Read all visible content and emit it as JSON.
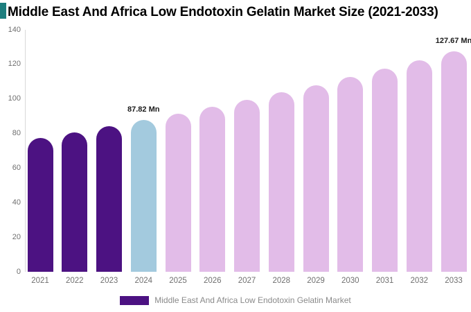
{
  "brand": {
    "accent_color": "#1d7e7e"
  },
  "title": "Middle East And Africa Low Endotoxin Gelatin Market Size (2021-2033)",
  "legend": {
    "swatch_color": "#4c1282",
    "label": "Middle East And Africa Low Endotoxin Gelatin Market"
  },
  "axis": {
    "label_color": "#6f6f6f",
    "line_color": "#d8d8d8"
  },
  "chart_data": {
    "type": "bar",
    "title": "Middle East And Africa Low Endotoxin Gelatin Market Size (2021-2033)",
    "unit": "Mn",
    "categories": [
      "2021",
      "2022",
      "2023",
      "2024",
      "2025",
      "2026",
      "2027",
      "2028",
      "2029",
      "2030",
      "2031",
      "2032",
      "2033"
    ],
    "values": [
      77.5,
      80.8,
      84.2,
      87.82,
      91.5,
      95.4,
      99.5,
      103.7,
      108.1,
      112.7,
      117.5,
      122.5,
      127.67
    ],
    "bar_colors": [
      "#4c1282",
      "#4c1282",
      "#4c1282",
      "#a3cade",
      "#e2bce8",
      "#e2bce8",
      "#e2bce8",
      "#e2bce8",
      "#e2bce8",
      "#e2bce8",
      "#e2bce8",
      "#e2bce8",
      "#e2bce8"
    ],
    "annotations": [
      {
        "index": 3,
        "label": "87.82 Mn"
      },
      {
        "index": 12,
        "label": "127.67 Mn"
      }
    ],
    "ylim": [
      0,
      140
    ],
    "yticks": [
      0,
      20,
      40,
      60,
      80,
      100,
      120,
      140
    ],
    "grid": false,
    "legend_position": "bottom"
  }
}
